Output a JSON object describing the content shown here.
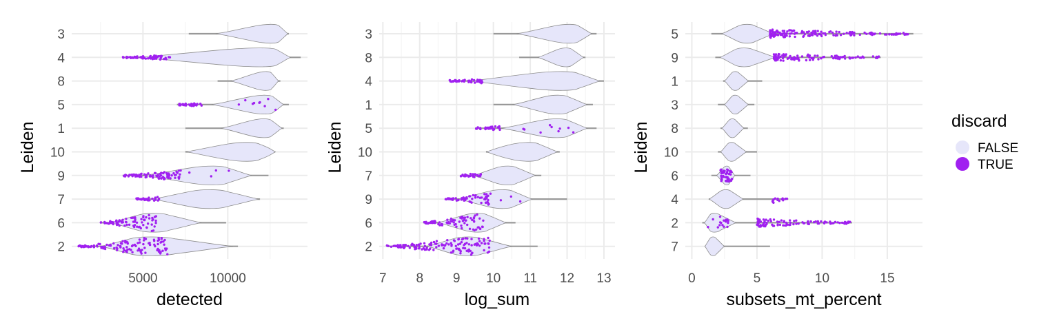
{
  "colors": {
    "false_fill": "#e6e6fa",
    "true_fill": "#a020f0",
    "outline": "#8c8c8c",
    "whisker": "#999999"
  },
  "legend": {
    "title": "discard",
    "items": [
      {
        "label": "FALSE",
        "color": "#e6e6fa"
      },
      {
        "label": "TRUE",
        "color": "#a020f0"
      }
    ]
  },
  "chart_data": [
    {
      "type": "violin",
      "title": "",
      "xlabel": "detected",
      "ylabel": "Leiden",
      "xlim": [
        800,
        14700
      ],
      "xticks": [
        5000,
        10000
      ],
      "xtick_labels": [
        "5000",
        "10000"
      ],
      "x_minor_ticks": [
        2500,
        7500,
        12500
      ],
      "categories": [
        "3",
        "4",
        "8",
        "5",
        "1",
        "10",
        "9",
        "7",
        "6",
        "2"
      ],
      "violins": [
        {
          "group": "3",
          "min": 7700,
          "q_low": 10600,
          "median": 12800,
          "q_high": 13300,
          "max": 13600,
          "true_below": null,
          "true_frac": 0
        },
        {
          "group": "4",
          "min": 3800,
          "q_low": 7500,
          "median": 12500,
          "q_high": 13300,
          "max": 14300,
          "true_below": 6600,
          "true_frac": 0
        },
        {
          "group": "8",
          "min": 9400,
          "q_low": 11000,
          "median": 12400,
          "q_high": 12800,
          "max": 13100,
          "true_below": null,
          "true_frac": 0
        },
        {
          "group": "5",
          "min": 7000,
          "q_low": 10300,
          "median": 12400,
          "q_high": 13000,
          "max": 13600,
          "true_below": 8500,
          "true_frac": 0.15
        },
        {
          "group": "1",
          "min": 7500,
          "q_low": 10600,
          "median": 12300,
          "q_high": 12900,
          "max": 13300,
          "true_below": null,
          "true_frac": 0
        },
        {
          "group": "10",
          "min": 7500,
          "q_low": 8800,
          "median": 11300,
          "q_high": 12500,
          "max": 12800,
          "true_below": null,
          "true_frac": 0
        },
        {
          "group": "9",
          "min": 3800,
          "q_low": 6600,
          "median": 9300,
          "q_high": 10700,
          "max": 12400,
          "true_below": 7200,
          "true_frac": 0.12
        },
        {
          "group": "7",
          "min": 4600,
          "q_low": 6800,
          "median": 9000,
          "q_high": 10900,
          "max": 11900,
          "true_below": 6000,
          "true_frac": 0
        },
        {
          "group": "6",
          "min": 2500,
          "q_low": 4000,
          "median": 5600,
          "q_high": 7500,
          "max": 9900,
          "true_below": 5900,
          "true_frac": 0
        },
        {
          "group": "2",
          "min": 1200,
          "q_low": 3500,
          "median": 5200,
          "q_high": 8600,
          "max": 10600,
          "true_below": 6500,
          "true_frac": 0
        }
      ]
    },
    {
      "type": "violin",
      "title": "",
      "xlabel": "log_sum",
      "ylabel": "Leiden",
      "xlim": [
        6.9,
        13.3
      ],
      "xticks": [
        7,
        8,
        9,
        10,
        11,
        12,
        13
      ],
      "xtick_labels": [
        "7",
        "8",
        "9",
        "10",
        "11",
        "12",
        "13"
      ],
      "x_minor_ticks": [
        7.5,
        8.5,
        9.5,
        10.5,
        11.5,
        12.5
      ],
      "categories": [
        "3",
        "8",
        "4",
        "1",
        "5",
        "10",
        "7",
        "9",
        "6",
        "2"
      ],
      "violins": [
        {
          "group": "3",
          "min": 10.0,
          "q_low": 11.2,
          "median": 12.15,
          "q_high": 12.5,
          "max": 12.8,
          "true_below": null,
          "true_frac": 0
        },
        {
          "group": "8",
          "min": 10.7,
          "q_low": 11.5,
          "median": 12.0,
          "q_high": 12.3,
          "max": 12.5,
          "true_below": null,
          "true_frac": 0
        },
        {
          "group": "4",
          "min": 8.8,
          "q_low": 10.3,
          "median": 12.0,
          "q_high": 12.6,
          "max": 13.0,
          "true_below": 9.7,
          "true_frac": 0
        },
        {
          "group": "1",
          "min": 10.0,
          "q_low": 11.0,
          "median": 11.8,
          "q_high": 12.3,
          "max": 12.7,
          "true_below": null,
          "true_frac": 0
        },
        {
          "group": "5",
          "min": 9.5,
          "q_low": 10.8,
          "median": 11.8,
          "q_high": 12.3,
          "max": 12.8,
          "true_below": 10.2,
          "true_frac": 0.15
        },
        {
          "group": "10",
          "min": 9.8,
          "q_low": 10.1,
          "median": 11.0,
          "q_high": 11.5,
          "max": 11.8,
          "true_below": null,
          "true_frac": 0
        },
        {
          "group": "7",
          "min": 9.1,
          "q_low": 9.8,
          "median": 10.4,
          "q_high": 10.9,
          "max": 11.3,
          "true_below": 9.7,
          "true_frac": 0
        },
        {
          "group": "9",
          "min": 8.7,
          "q_low": 9.5,
          "median": 10.3,
          "q_high": 10.8,
          "max": 12.0,
          "true_below": 9.9,
          "true_frac": 0.1
        },
        {
          "group": "6",
          "min": 8.1,
          "q_low": 8.9,
          "median": 9.6,
          "q_high": 10.1,
          "max": 10.6,
          "true_below": 9.75,
          "true_frac": 0
        },
        {
          "group": "2",
          "min": 7.1,
          "q_low": 8.6,
          "median": 9.3,
          "q_high": 10.1,
          "max": 11.2,
          "true_below": 9.9,
          "true_frac": 0
        }
      ]
    },
    {
      "type": "violin",
      "title": "",
      "xlabel": "subsets_mt_percent",
      "ylabel": "Leiden",
      "xlim": [
        -0.5,
        17.7
      ],
      "xticks": [
        0,
        5,
        10,
        15
      ],
      "xtick_labels": [
        "0",
        "5",
        "10",
        "15"
      ],
      "x_minor_ticks": [
        2.5,
        7.5,
        12.5
      ],
      "categories": [
        "5",
        "9",
        "1",
        "3",
        "8",
        "10",
        "6",
        "4",
        "2",
        "7"
      ],
      "violins": [
        {
          "group": "5",
          "min": 1.5,
          "q_low": 3.0,
          "median": 4.2,
          "q_high": 5.6,
          "max": 17.0,
          "true_above": 6.0,
          "true_frac": 0
        },
        {
          "group": "9",
          "min": 1.8,
          "q_low": 2.8,
          "median": 3.9,
          "q_high": 5.6,
          "max": 14.5,
          "true_above": 6.3,
          "true_frac": 0
        },
        {
          "group": "1",
          "min": 2.4,
          "q_low": 2.8,
          "median": 3.3,
          "q_high": 4.0,
          "max": 5.4,
          "true_above": null,
          "true_frac": 0
        },
        {
          "group": "3",
          "min": 2.0,
          "q_low": 2.8,
          "median": 3.3,
          "q_high": 4.0,
          "max": 4.8,
          "true_above": null,
          "true_frac": 0
        },
        {
          "group": "8",
          "min": 2.2,
          "q_low": 2.6,
          "median": 3.1,
          "q_high": 3.7,
          "max": 4.3,
          "true_above": null,
          "true_frac": 0
        },
        {
          "group": "10",
          "min": 2.0,
          "q_low": 2.5,
          "median": 3.0,
          "q_high": 3.8,
          "max": 5.0,
          "true_above": null,
          "true_frac": 0
        },
        {
          "group": "6",
          "min": 1.5,
          "q_low": 2.2,
          "median": 2.7,
          "q_high": 3.1,
          "max": 4.5,
          "true_above": null,
          "true_frac": 0.75
        },
        {
          "group": "4",
          "min": 1.3,
          "q_low": 1.8,
          "median": 2.6,
          "q_high": 3.5,
          "max": 7.4,
          "true_above": 6.2,
          "true_frac": 0
        },
        {
          "group": "2",
          "min": 0.8,
          "q_low": 1.2,
          "median": 1.6,
          "q_high": 2.8,
          "max": 12.3,
          "true_above": 5.0,
          "true_frac": 0.3
        },
        {
          "group": "7",
          "min": 1.0,
          "q_low": 1.2,
          "median": 1.6,
          "q_high": 2.2,
          "max": 6.0,
          "true_above": null,
          "true_frac": 0
        }
      ]
    }
  ]
}
